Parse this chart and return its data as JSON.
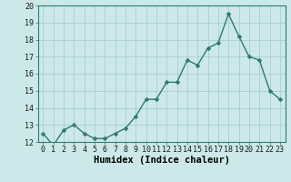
{
  "x": [
    0,
    1,
    2,
    3,
    4,
    5,
    6,
    7,
    8,
    9,
    10,
    11,
    12,
    13,
    14,
    15,
    16,
    17,
    18,
    19,
    20,
    21,
    22,
    23
  ],
  "y": [
    12.5,
    11.8,
    12.7,
    13.0,
    12.5,
    12.2,
    12.2,
    12.5,
    12.8,
    13.5,
    14.5,
    14.5,
    15.5,
    15.5,
    16.8,
    16.5,
    17.5,
    17.8,
    19.5,
    18.2,
    17.0,
    16.8,
    15.0,
    14.5
  ],
  "xlabel": "Humidex (Indice chaleur)",
  "ylim": [
    12,
    20
  ],
  "xlim": [
    -0.5,
    23.5
  ],
  "yticks": [
    12,
    13,
    14,
    15,
    16,
    17,
    18,
    19,
    20
  ],
  "xticks": [
    0,
    1,
    2,
    3,
    4,
    5,
    6,
    7,
    8,
    9,
    10,
    11,
    12,
    13,
    14,
    15,
    16,
    17,
    18,
    19,
    20,
    21,
    22,
    23
  ],
  "line_color": "#2e7b6e",
  "marker_color": "#2e7b6e",
  "bg_color": "#cce8e8",
  "grid_color": "#aacfcf",
  "xlabel_fontsize": 7.5,
  "tick_fontsize": 6,
  "line_width": 1.0,
  "marker_size": 2.5
}
